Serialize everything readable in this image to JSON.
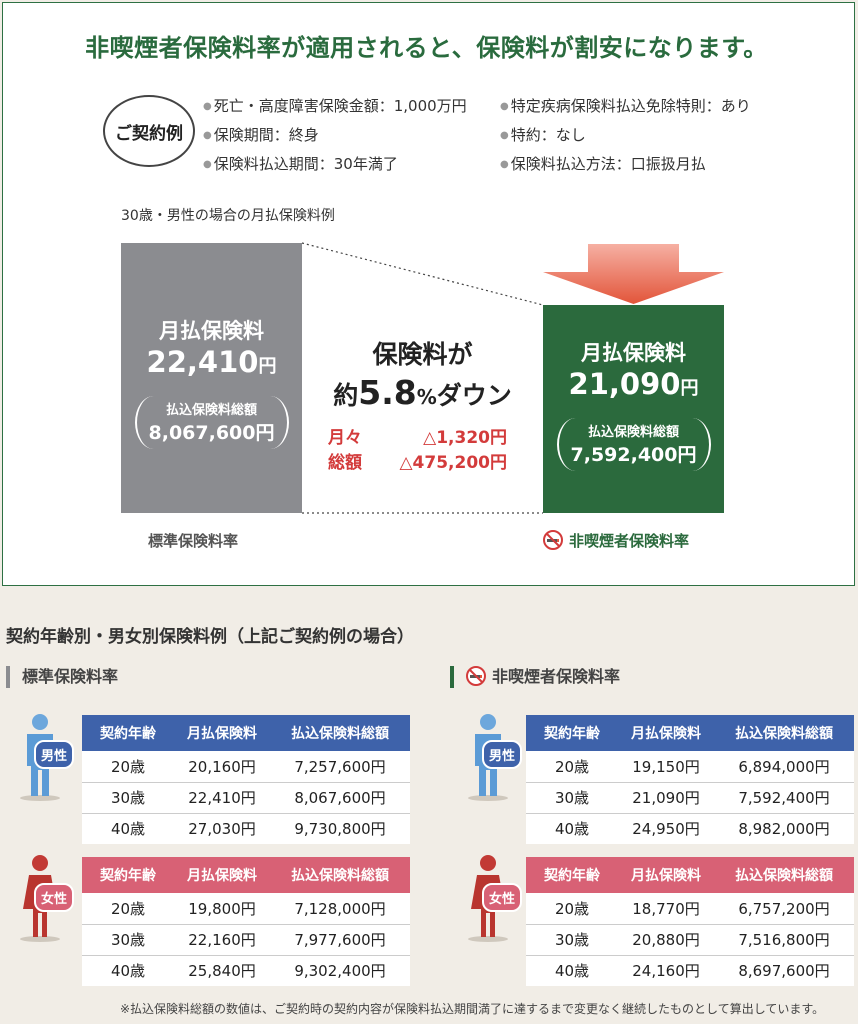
{
  "headline": "非喫煙者保険料率が適用されると、保険料が割安になります。",
  "contract": {
    "label": "ご契約例",
    "left_items": [
      "死亡・高度障害保険金額：1,000万円",
      "保険期間：終身",
      "保険料払込期間：30年満了"
    ],
    "right_items": [
      "特定疾病保険料払込免除特則：あり",
      "特約：なし",
      "保険料払込方法：口振扱月払"
    ]
  },
  "example_label": "30歳・男性の場合の月払保険料例",
  "standard_bar": {
    "title": "月払保険料",
    "amount": "22,410",
    "yen": "円",
    "total_label": "払込保険料総額",
    "total_value": "8,067,600円",
    "footer": "標準保険料率"
  },
  "nonsmoker_bar": {
    "title": "月払保険料",
    "amount": "21,090",
    "yen": "円",
    "total_label": "払込保険料総額",
    "total_value": "7,592,400円",
    "footer": "非喫煙者保険料率"
  },
  "middle": {
    "line1": "保険料が",
    "prefix": "約",
    "number": "5.8",
    "percent": "%",
    "suffix": "ダウン",
    "monthly_label": "月々",
    "monthly_value": "△1,320円",
    "total_label": "総額",
    "total_value": "△475,200円"
  },
  "section_title": "契約年齢別・男女別保険料例（上記ご契約例の場合）",
  "standard_heading": "標準保険料率",
  "nonsmoker_heading": "非喫煙者保険料率",
  "headers": [
    "契約年齢",
    "月払保険料",
    "払込保険料総額"
  ],
  "gender": {
    "male": "男性",
    "female": "女性"
  },
  "tables": {
    "std_male": [
      [
        "20歳",
        "20,160円",
        "7,257,600円"
      ],
      [
        "30歳",
        "22,410円",
        "8,067,600円"
      ],
      [
        "40歳",
        "27,030円",
        "9,730,800円"
      ]
    ],
    "std_female": [
      [
        "20歳",
        "19,800円",
        "7,128,000円"
      ],
      [
        "30歳",
        "22,160円",
        "7,977,600円"
      ],
      [
        "40歳",
        "25,840円",
        "9,302,400円"
      ]
    ],
    "ns_male": [
      [
        "20歳",
        "19,150円",
        "6,894,000円"
      ],
      [
        "30歳",
        "21,090円",
        "7,592,400円"
      ],
      [
        "40歳",
        "24,950円",
        "8,982,000円"
      ]
    ],
    "ns_female": [
      [
        "20歳",
        "18,770円",
        "6,757,200円"
      ],
      [
        "30歳",
        "20,880円",
        "7,516,800円"
      ],
      [
        "40歳",
        "24,160円",
        "8,697,600円"
      ]
    ]
  },
  "footnote": "※払込保険料総額の数値は、ご契約時の契約内容が保険料払込期間満了に達するまで変更なく継続したものとして算出しています。",
  "colors": {
    "green": "#2b6a3d",
    "gray": "#8b8c90",
    "male_blue": "#3e62aa",
    "female_pink": "#d86175",
    "discount_red": "#d33b3b",
    "arrow_red": "#e2553a"
  }
}
